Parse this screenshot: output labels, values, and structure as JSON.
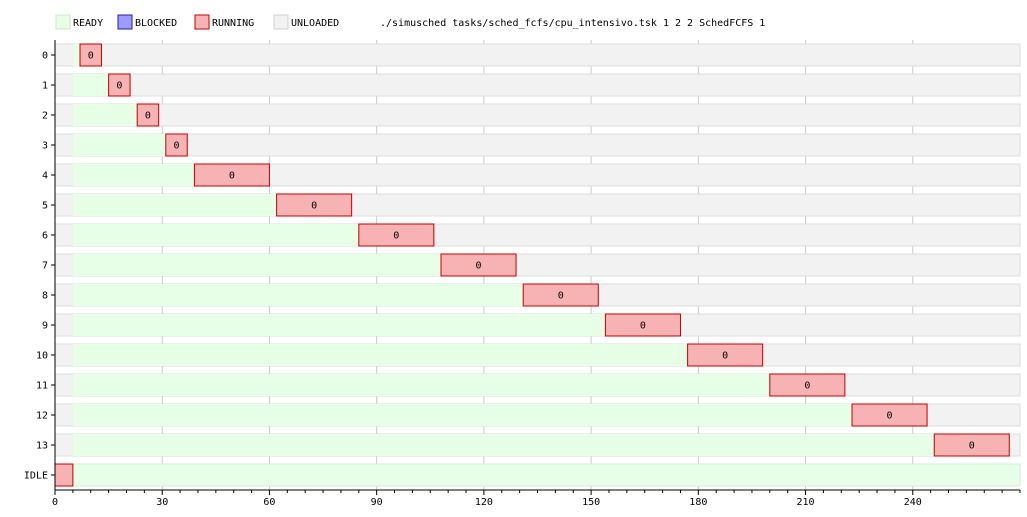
{
  "header": {
    "command": "./simusched tasks/sched_fcfs/cpu_intensivo.tsk 1 2 2 SchedFCFS 1"
  },
  "legend": [
    {
      "label": "READY",
      "fill": "#e6ffe6",
      "stroke": "#c8e8c8"
    },
    {
      "label": "BLOCKED",
      "fill": "#9d9dff",
      "stroke": "#2020a0"
    },
    {
      "label": "RUNNING",
      "fill": "#f7b3b3",
      "stroke": "#c00000"
    },
    {
      "label": "UNLOADED",
      "fill": "#f2f2f2",
      "stroke": "#d0d0d0"
    }
  ],
  "colors": {
    "ready": "#e6ffe6",
    "running_fill": "#f7b3b3",
    "running_stroke": "#c00000",
    "unloaded": "#f2f2f2",
    "grid": "#c8c8c8"
  },
  "chart_data": {
    "type": "gantt",
    "xlim": [
      0,
      270
    ],
    "xticks": [
      0,
      30,
      60,
      90,
      120,
      150,
      180,
      210,
      240
    ],
    "rows": [
      "0",
      "1",
      "2",
      "3",
      "4",
      "5",
      "6",
      "7",
      "8",
      "9",
      "10",
      "11",
      "12",
      "13",
      "IDLE"
    ],
    "tasks": [
      {
        "row": "0",
        "load": 5,
        "run_start": 7,
        "run_end": 13,
        "label": "0"
      },
      {
        "row": "1",
        "load": 5,
        "run_start": 15,
        "run_end": 21,
        "label": "0"
      },
      {
        "row": "2",
        "load": 5,
        "run_start": 23,
        "run_end": 29,
        "label": "0"
      },
      {
        "row": "3",
        "load": 5,
        "run_start": 31,
        "run_end": 37,
        "label": "0"
      },
      {
        "row": "4",
        "load": 5,
        "run_start": 39,
        "run_end": 60,
        "label": "0"
      },
      {
        "row": "5",
        "load": 5,
        "run_start": 62,
        "run_end": 83,
        "label": "0"
      },
      {
        "row": "6",
        "load": 5,
        "run_start": 85,
        "run_end": 106,
        "label": "0"
      },
      {
        "row": "7",
        "load": 5,
        "run_start": 108,
        "run_end": 129,
        "label": "0"
      },
      {
        "row": "8",
        "load": 5,
        "run_start": 131,
        "run_end": 152,
        "label": "0"
      },
      {
        "row": "9",
        "load": 5,
        "run_start": 154,
        "run_end": 175,
        "label": "0"
      },
      {
        "row": "10",
        "load": 5,
        "run_start": 177,
        "run_end": 198,
        "label": "0"
      },
      {
        "row": "11",
        "load": 5,
        "run_start": 200,
        "run_end": 221,
        "label": "0"
      },
      {
        "row": "12",
        "load": 5,
        "run_start": 223,
        "run_end": 244,
        "label": "0"
      },
      {
        "row": "13",
        "load": 5,
        "run_start": 246,
        "run_end": 267,
        "label": "0"
      }
    ],
    "idle": {
      "row": "IDLE",
      "run_start": 0,
      "run_end": 5,
      "ready_start": 5,
      "ready_end": 270
    }
  }
}
